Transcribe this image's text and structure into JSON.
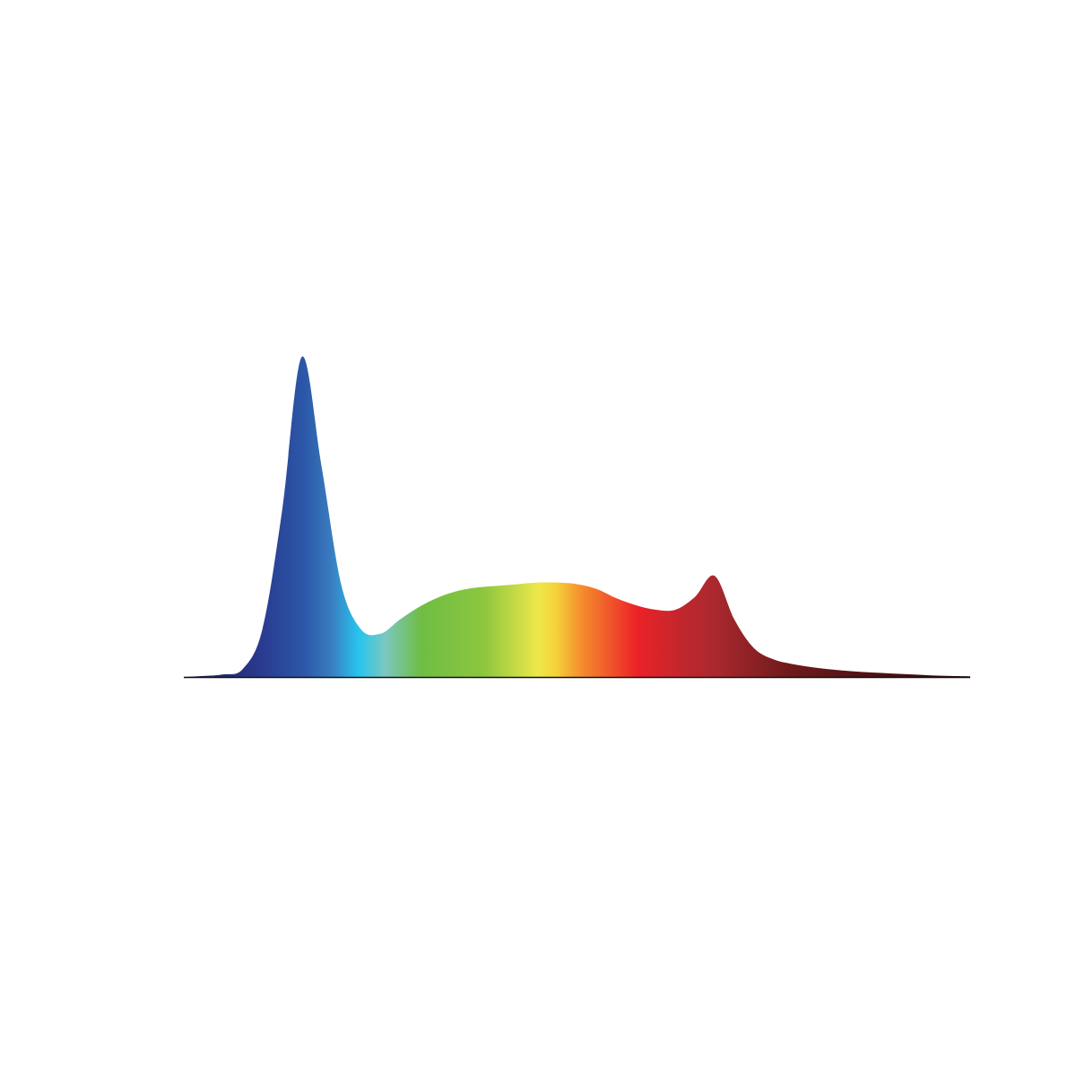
{
  "chart_data": {
    "type": "area",
    "values": [
      0,
      0.3,
      0.8,
      2.5,
      15,
      52,
      100,
      66,
      29,
      15,
      13.5,
      18,
      22,
      25,
      27,
      28,
      28.5,
      29,
      29.5,
      29.5,
      29,
      27.5,
      24.6,
      22.4,
      21,
      21,
      25,
      31.6,
      18,
      9,
      5.5,
      4,
      3,
      2.3,
      1.8,
      1.4,
      1.1,
      0.8,
      0.5,
      0.3,
      0.2
    ]
  }
}
